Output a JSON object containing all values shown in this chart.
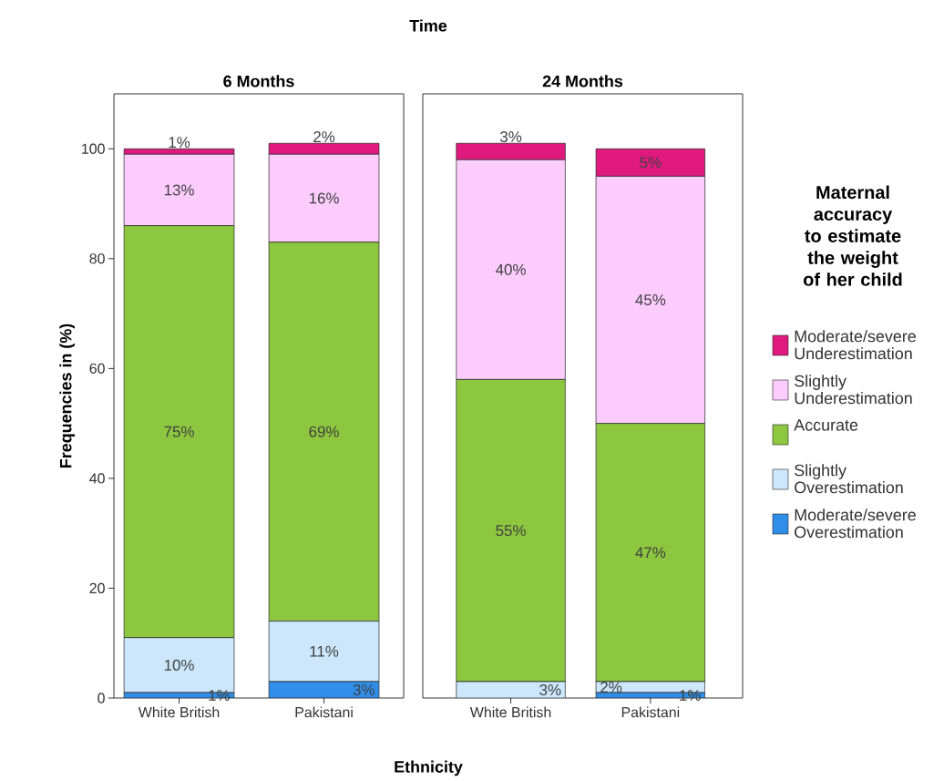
{
  "chart_data": [
    {
      "type": "bar",
      "stacked": true,
      "title": "6 Months",
      "annotations": [
        "Time"
      ],
      "xlabel": "Ethnicity",
      "ylabel": "Frequencies in (%)",
      "categories": [
        "White British",
        "Pakistani"
      ],
      "ylim": [
        0,
        110
      ],
      "yticks": [
        0,
        20,
        40,
        60,
        80,
        100
      ],
      "series": [
        {
          "color": "#2f8fe8",
          "values": [
            1,
            3
          ],
          "value_labels": [
            "1%",
            "3%"
          ]
        },
        {
          "color": "#cce7fb",
          "values": [
            10,
            11
          ],
          "value_labels": [
            "10%",
            "11%"
          ]
        },
        {
          "color": "#8dc63f",
          "values": [
            75,
            69
          ],
          "value_labels": [
            "75%",
            "69%"
          ]
        },
        {
          "color": "#fcccfc",
          "values": [
            13,
            16
          ],
          "value_labels": [
            "13%",
            "16%"
          ]
        },
        {
          "color": "#e0197f",
          "values": [
            1,
            2
          ],
          "value_labels": [
            "1%",
            "2%"
          ]
        }
      ]
    },
    {
      "type": "bar",
      "stacked": true,
      "title": "24 Months",
      "tick_labels": "x",
      "legend": "right",
      "legend_title": "Maternal accuracy to estimate the weight of her child",
      "categories": [
        "White British",
        "Pakistani"
      ],
      "ylim": [
        0,
        110
      ],
      "series": [
        {
          "name": "Moderate/severe Overestimation",
          "color": "#2f8fe8",
          "values": [
            null,
            1
          ],
          "value_labels": [
            null,
            "1%"
          ]
        },
        {
          "name": "Slightly Overestimation",
          "color": "#cce7fb",
          "values": [
            3,
            2
          ],
          "value_labels": [
            "3%",
            "2%"
          ]
        },
        {
          "name": "Accurate",
          "color": "#8dc63f",
          "values": [
            55,
            47
          ],
          "value_labels": [
            "55%",
            "47%"
          ]
        },
        {
          "name": "Slightly Underestimation",
          "color": "#fcccfc",
          "values": [
            40,
            45
          ],
          "value_labels": [
            "40%",
            "45%"
          ]
        },
        {
          "name": "Moderate/severe Underestimation",
          "color": "#e0197f",
          "values": [
            3,
            5
          ],
          "value_labels": [
            "3%",
            "5%"
          ]
        }
      ]
    }
  ]
}
